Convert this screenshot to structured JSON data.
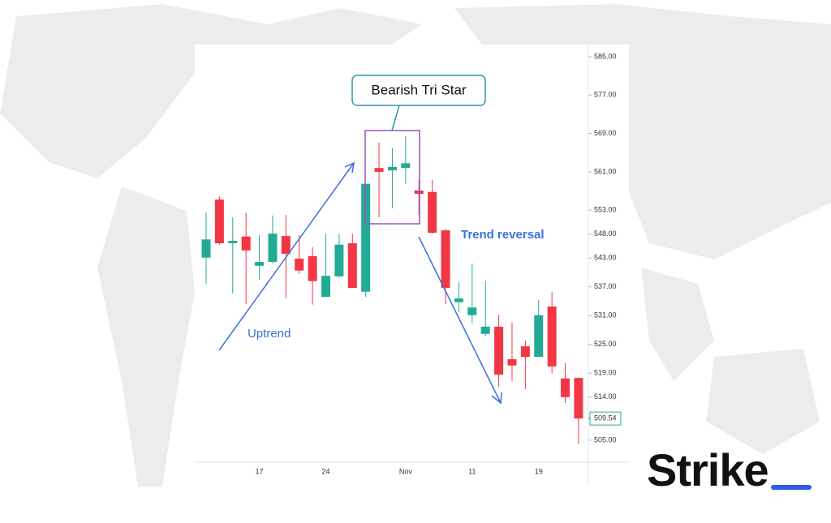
{
  "chart_data": {
    "type": "candlestick",
    "categories": [
      null,
      null,
      null,
      null,
      "17",
      null,
      null,
      null,
      null,
      "24",
      null,
      null,
      null,
      null,
      null,
      "Nov",
      null,
      null,
      null,
      null,
      "11",
      null,
      null,
      null,
      null,
      "19",
      null,
      null,
      null
    ],
    "open": [
      543.1,
      555.2,
      546.1,
      547.5,
      541.4,
      542.2,
      547.6,
      542.9,
      543.4,
      534.9,
      539.2,
      546.1,
      536.0,
      561.8,
      561.3,
      561.8,
      557.1,
      556.8,
      548.8,
      533.8,
      531.1,
      527.2,
      528.7,
      521.9,
      524.6,
      522.4,
      532.9,
      517.9,
      518.0
    ],
    "high": [
      552.5,
      555.9,
      551.5,
      552.4,
      547.8,
      551.9,
      552.0,
      547.8,
      545.3,
      548.1,
      548.1,
      548.1,
      558.5,
      567.1,
      565.9,
      568.4,
      559.3,
      559.3,
      549.1,
      538.0,
      541.9,
      538.3,
      531.2,
      529.5,
      525.8,
      534.3,
      535.9,
      521.1,
      518.0
    ],
    "low": [
      537.6,
      545.8,
      535.6,
      533.4,
      538.5,
      541.9,
      534.6,
      539.7,
      533.3,
      534.9,
      539.0,
      536.8,
      534.9,
      551.5,
      553.4,
      558.5,
      552.0,
      548.1,
      533.4,
      531.7,
      529.4,
      526.8,
      516.2,
      517.4,
      515.7,
      522.4,
      519.0,
      512.8,
      504.2
    ],
    "close": [
      546.9,
      546.1,
      546.6,
      544.6,
      542.2,
      548.1,
      543.9,
      540.4,
      538.2,
      539.3,
      545.8,
      536.8,
      558.5,
      561.0,
      562.0,
      562.8,
      556.4,
      548.3,
      536.8,
      534.6,
      532.7,
      528.7,
      518.7,
      520.6,
      522.4,
      531.1,
      520.4,
      514.0,
      509.54
    ],
    "up_color": "#22ab94",
    "down_color": "#f23645",
    "ylim": [
      500.43,
      587.03
    ],
    "yticks": [
      {
        "value": 585,
        "label": "585.00"
      },
      {
        "value": 577,
        "label": "577.00"
      },
      {
        "value": 569,
        "label": "569.00"
      },
      {
        "value": 561,
        "label": "561.00"
      },
      {
        "value": 553,
        "label": "553.00"
      },
      {
        "value": 548,
        "label": "548.00"
      },
      {
        "value": 543,
        "label": "543.00"
      },
      {
        "value": 537,
        "label": "537.00"
      },
      {
        "value": 531,
        "label": "531.00"
      },
      {
        "value": 525,
        "label": "525.00"
      },
      {
        "value": 519,
        "label": "519.00"
      },
      {
        "value": 514,
        "label": "514.00"
      },
      {
        "value": 505,
        "label": "505.00"
      }
    ],
    "last_price": {
      "value": 509.54,
      "label": "509.54"
    },
    "annotations": [
      "Bearish Tri Star",
      "Uptrend",
      "Trend reversal"
    ]
  },
  "logo": "Strike"
}
